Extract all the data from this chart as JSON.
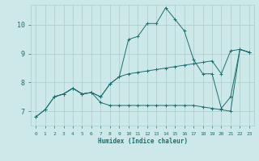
{
  "xlabel": "Humidex (Indice chaleur)",
  "background_color": "#cce8e8",
  "grid_color": "#aacccc",
  "line_color": "#1a7070",
  "xlim": [
    -0.5,
    23.5
  ],
  "ylim": [
    6.5,
    10.7
  ],
  "yticks": [
    7,
    8,
    9,
    10
  ],
  "xticks": [
    0,
    1,
    2,
    3,
    4,
    5,
    6,
    7,
    8,
    9,
    10,
    11,
    12,
    13,
    14,
    15,
    16,
    17,
    18,
    19,
    20,
    21,
    22,
    23
  ],
  "line1_x": [
    0,
    1,
    2,
    3,
    4,
    5,
    6,
    7,
    8,
    9,
    10,
    11,
    12,
    13,
    14,
    15,
    16,
    17,
    18,
    19,
    20,
    21,
    22,
    23
  ],
  "line1_y": [
    6.8,
    7.05,
    7.5,
    7.6,
    7.8,
    7.6,
    7.65,
    7.5,
    7.95,
    8.2,
    9.5,
    9.6,
    10.05,
    10.05,
    10.6,
    10.2,
    9.8,
    8.8,
    8.3,
    8.3,
    7.1,
    7.5,
    9.15,
    9.05
  ],
  "line2_x": [
    0,
    1,
    2,
    3,
    4,
    5,
    6,
    7,
    8,
    9,
    10,
    11,
    12,
    13,
    14,
    15,
    16,
    17,
    18,
    19,
    20,
    21,
    22,
    23
  ],
  "line2_y": [
    6.8,
    7.05,
    7.5,
    7.6,
    7.8,
    7.6,
    7.65,
    7.3,
    7.2,
    7.2,
    7.2,
    7.2,
    7.2,
    7.2,
    7.2,
    7.2,
    7.2,
    7.2,
    7.15,
    7.1,
    7.05,
    7.0,
    9.15,
    9.05
  ],
  "line3_x": [
    2,
    3,
    4,
    5,
    6,
    7,
    8,
    9,
    10,
    11,
    12,
    13,
    14,
    15,
    16,
    17,
    18,
    19,
    20,
    21,
    22,
    23
  ],
  "line3_y": [
    7.5,
    7.6,
    7.8,
    7.6,
    7.65,
    7.5,
    7.95,
    8.2,
    8.3,
    8.35,
    8.4,
    8.45,
    8.5,
    8.55,
    8.6,
    8.65,
    8.7,
    8.75,
    8.3,
    9.1,
    9.15,
    9.05
  ]
}
